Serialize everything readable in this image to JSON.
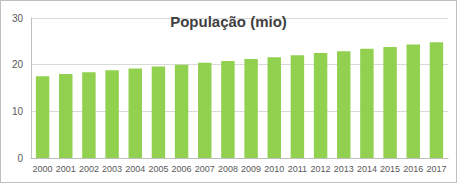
{
  "chart_data": {
    "type": "bar",
    "title": "População (mio)",
    "categories": [
      "2000",
      "2001",
      "2002",
      "2003",
      "2004",
      "2005",
      "2006",
      "2007",
      "2008",
      "2009",
      "2010",
      "2011",
      "2012",
      "2013",
      "2014",
      "2015",
      "2016",
      "2017"
    ],
    "values": [
      17.5,
      18.0,
      18.4,
      18.8,
      19.2,
      19.6,
      20.0,
      20.4,
      20.8,
      21.2,
      21.6,
      22.0,
      22.5,
      22.9,
      23.4,
      23.8,
      24.3,
      24.8
    ],
    "color": "#92d050",
    "ylim": [
      0,
      30
    ],
    "yticks": [
      0,
      10,
      20,
      30
    ],
    "grid": true
  }
}
